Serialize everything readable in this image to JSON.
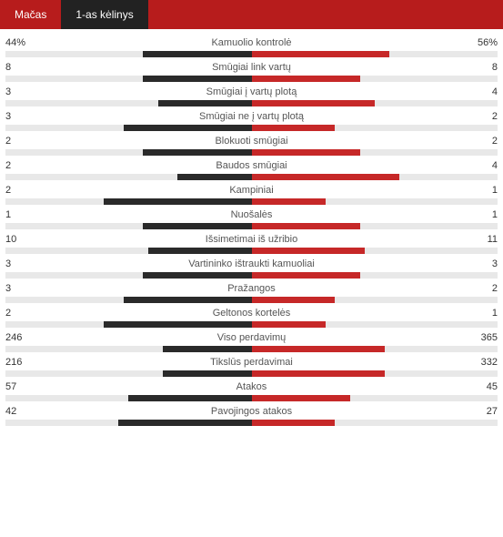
{
  "colors": {
    "header_bg": "#b71c1c",
    "active_tab_bg": "#222222",
    "tab_text": "#ffffff",
    "track_bg": "#e8e8e8",
    "left_bar": "#2a2a2a",
    "right_bar": "#c62828",
    "label_color": "#555555",
    "value_color": "#333333"
  },
  "tabs": [
    {
      "label": "Mačas",
      "active": false
    },
    {
      "label": "1-as kėlinys",
      "active": true
    }
  ],
  "bar_max_half_pct": 50,
  "stats": [
    {
      "label": "Kamuolio kontrolė",
      "left_display": "44%",
      "right_display": "56%",
      "left_width_pct": 22,
      "right_width_pct": 28
    },
    {
      "label": "Smūgiai link vartų",
      "left_display": "8",
      "right_display": "8",
      "left_width_pct": 22,
      "right_width_pct": 22
    },
    {
      "label": "Smūgiai į vartų plotą",
      "left_display": "3",
      "right_display": "4",
      "left_width_pct": 19,
      "right_width_pct": 25
    },
    {
      "label": "Smūgiai ne į vartų plotą",
      "left_display": "3",
      "right_display": "2",
      "left_width_pct": 26,
      "right_width_pct": 17
    },
    {
      "label": "Blokuoti smūgiai",
      "left_display": "2",
      "right_display": "2",
      "left_width_pct": 22,
      "right_width_pct": 22
    },
    {
      "label": "Baudos smūgiai",
      "left_display": "2",
      "right_display": "4",
      "left_width_pct": 15,
      "right_width_pct": 30
    },
    {
      "label": "Kampiniai",
      "left_display": "2",
      "right_display": "1",
      "left_width_pct": 30,
      "right_width_pct": 15
    },
    {
      "label": "Nuošalės",
      "left_display": "1",
      "right_display": "1",
      "left_width_pct": 22,
      "right_width_pct": 22
    },
    {
      "label": "Išsimetimai iš užribio",
      "left_display": "10",
      "right_display": "11",
      "left_width_pct": 21,
      "right_width_pct": 23
    },
    {
      "label": "Vartininko ištraukti kamuoliai",
      "left_display": "3",
      "right_display": "3",
      "left_width_pct": 22,
      "right_width_pct": 22
    },
    {
      "label": "Pražangos",
      "left_display": "3",
      "right_display": "2",
      "left_width_pct": 26,
      "right_width_pct": 17
    },
    {
      "label": "Geltonos kortelės",
      "left_display": "2",
      "right_display": "1",
      "left_width_pct": 30,
      "right_width_pct": 15
    },
    {
      "label": "Viso perdavimų",
      "left_display": "246",
      "right_display": "365",
      "left_width_pct": 18,
      "right_width_pct": 27
    },
    {
      "label": "Tikslūs perdavimai",
      "left_display": "216",
      "right_display": "332",
      "left_width_pct": 18,
      "right_width_pct": 27
    },
    {
      "label": "Atakos",
      "left_display": "57",
      "right_display": "45",
      "left_width_pct": 25,
      "right_width_pct": 20
    },
    {
      "label": "Pavojingos atakos",
      "left_display": "42",
      "right_display": "27",
      "left_width_pct": 27,
      "right_width_pct": 17
    }
  ]
}
